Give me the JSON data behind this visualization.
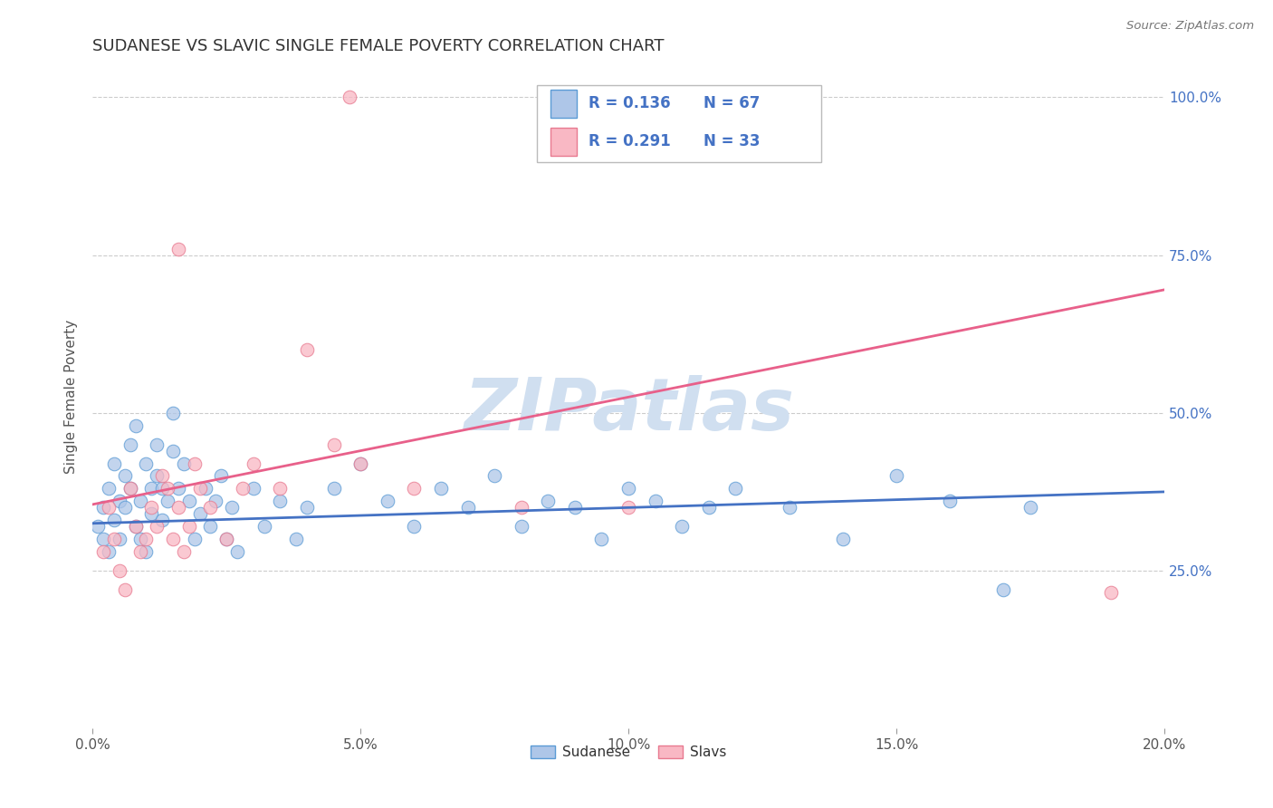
{
  "title": "SUDANESE VS SLAVIC SINGLE FEMALE POVERTY CORRELATION CHART",
  "source": "Source: ZipAtlas.com",
  "ylabel": "Single Female Poverty",
  "xlim": [
    0.0,
    0.2
  ],
  "ylim": [
    0.0,
    1.05
  ],
  "xticks": [
    0.0,
    0.05,
    0.1,
    0.15,
    0.2
  ],
  "xtick_labels": [
    "0.0%",
    "5.0%",
    "10.0%",
    "15.0%",
    "20.0%"
  ],
  "yticks": [
    0.25,
    0.5,
    0.75,
    1.0
  ],
  "ytick_labels": [
    "25.0%",
    "50.0%",
    "75.0%",
    "100.0%"
  ],
  "sudanese_color": "#aec6e8",
  "slavs_color": "#f9b8c4",
  "sudanese_edge": "#5b9bd5",
  "slavs_edge": "#e87a90",
  "trend_sudanese_color": "#4472c4",
  "trend_slavs_color": "#e8608a",
  "R_sudanese": 0.136,
  "N_sudanese": 67,
  "R_slavs": 0.291,
  "N_slavs": 33,
  "legend_color": "#4472c4",
  "watermark": "ZIPatlas",
  "watermark_color": "#d0dff0",
  "background_color": "#ffffff",
  "grid_color": "#cccccc",
  "title_color": "#333333",
  "sud_trend_y0": 0.325,
  "sud_trend_y1": 0.375,
  "slav_trend_y0": 0.355,
  "slav_trend_y1": 0.695
}
